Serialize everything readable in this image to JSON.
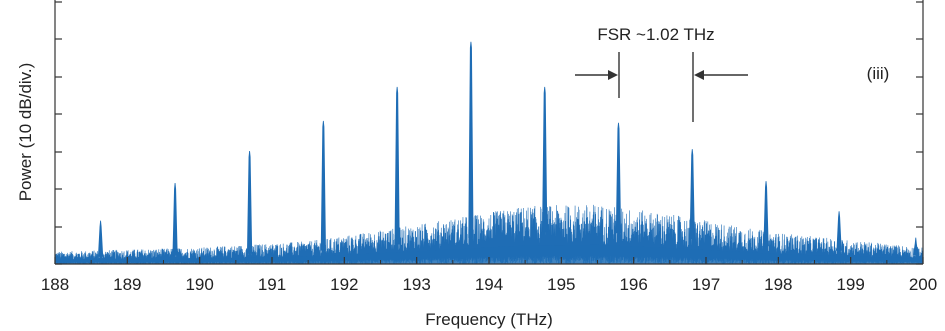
{
  "chart_data": {
    "type": "line",
    "title": "",
    "xlabel": "Frequency (THz)",
    "ylabel": "Power (10 dB/div.)",
    "xlim": [
      188,
      200
    ],
    "ylim": [
      0,
      6
    ],
    "x_ticks": [
      "188",
      "189",
      "190",
      "191",
      "192",
      "193",
      "194",
      "195",
      "196",
      "197",
      "198",
      "199",
      "200"
    ],
    "panel_label": "(iii)",
    "annotation": "FSR ~1.02 THz",
    "grid": false,
    "line_color": "#1f6db5",
    "peaks": [
      {
        "x": 188.63,
        "y": 1.15
      },
      {
        "x": 189.66,
        "y": 2.15
      },
      {
        "x": 190.69,
        "y": 3.0
      },
      {
        "x": 191.71,
        "y": 3.8
      },
      {
        "x": 192.73,
        "y": 4.7
      },
      {
        "x": 193.75,
        "y": 5.9
      },
      {
        "x": 194.77,
        "y": 4.7
      },
      {
        "x": 195.79,
        "y": 3.75
      },
      {
        "x": 196.81,
        "y": 3.05
      },
      {
        "x": 197.83,
        "y": 2.2
      },
      {
        "x": 198.84,
        "y": 1.4
      },
      {
        "x": 199.9,
        "y": 0.7
      }
    ],
    "noise_floor": [
      {
        "x": 188,
        "y": 0.3
      },
      {
        "x": 190,
        "y": 0.4
      },
      {
        "x": 191.5,
        "y": 0.55
      },
      {
        "x": 193,
        "y": 0.95
      },
      {
        "x": 194.5,
        "y": 1.4
      },
      {
        "x": 195.5,
        "y": 1.45
      },
      {
        "x": 196.5,
        "y": 1.2
      },
      {
        "x": 198,
        "y": 0.75
      },
      {
        "x": 200,
        "y": 0.4
      }
    ]
  }
}
